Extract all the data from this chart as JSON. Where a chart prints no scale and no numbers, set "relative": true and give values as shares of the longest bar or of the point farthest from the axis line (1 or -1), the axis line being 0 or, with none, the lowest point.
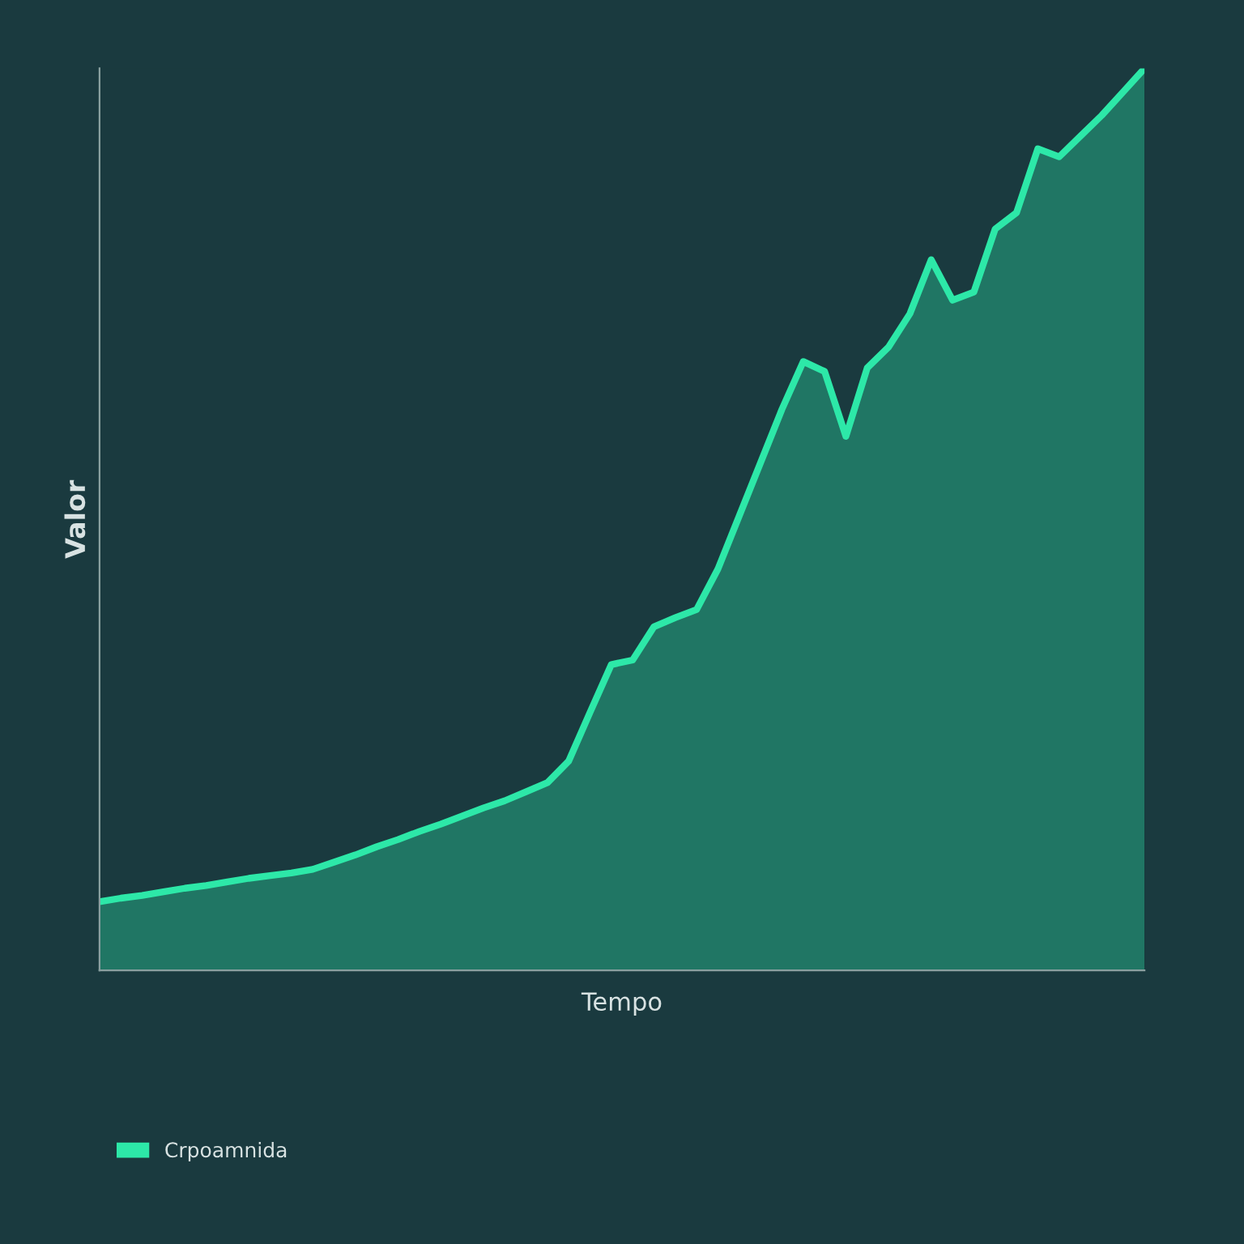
{
  "chart_data": {
    "type": "area",
    "xlabel": "Tempo",
    "ylabel": "Valor",
    "relative": true,
    "categories": [
      null,
      null,
      null,
      null,
      null,
      null,
      null,
      null,
      null,
      null,
      null,
      null,
      null,
      null,
      null,
      null,
      null,
      null,
      null,
      null,
      null,
      null,
      null,
      null,
      null,
      null,
      null,
      null,
      null,
      null,
      null,
      null,
      null,
      null,
      null,
      null,
      null,
      null,
      null,
      null,
      null,
      null,
      null,
      null,
      null,
      null,
      null,
      null,
      null,
      null
    ],
    "series": [
      {
        "name": "Crpoamnida",
        "color": "#2de8a8",
        "values": [
          0.076,
          0.08,
          0.083,
          0.087,
          0.091,
          0.094,
          0.098,
          0.102,
          0.105,
          0.108,
          0.112,
          0.12,
          0.128,
          0.137,
          0.145,
          0.154,
          0.162,
          0.171,
          0.18,
          0.188,
          0.198,
          0.208,
          0.232,
          0.286,
          0.339,
          0.344,
          0.381,
          0.391,
          0.4,
          0.445,
          0.504,
          0.563,
          0.622,
          0.675,
          0.664,
          0.592,
          0.668,
          0.691,
          0.728,
          0.788,
          0.743,
          0.752,
          0.822,
          0.84,
          0.911,
          0.902,
          0.925,
          0.948,
          0.974,
          1
        ]
      }
    ],
    "legend": "bottom left"
  }
}
